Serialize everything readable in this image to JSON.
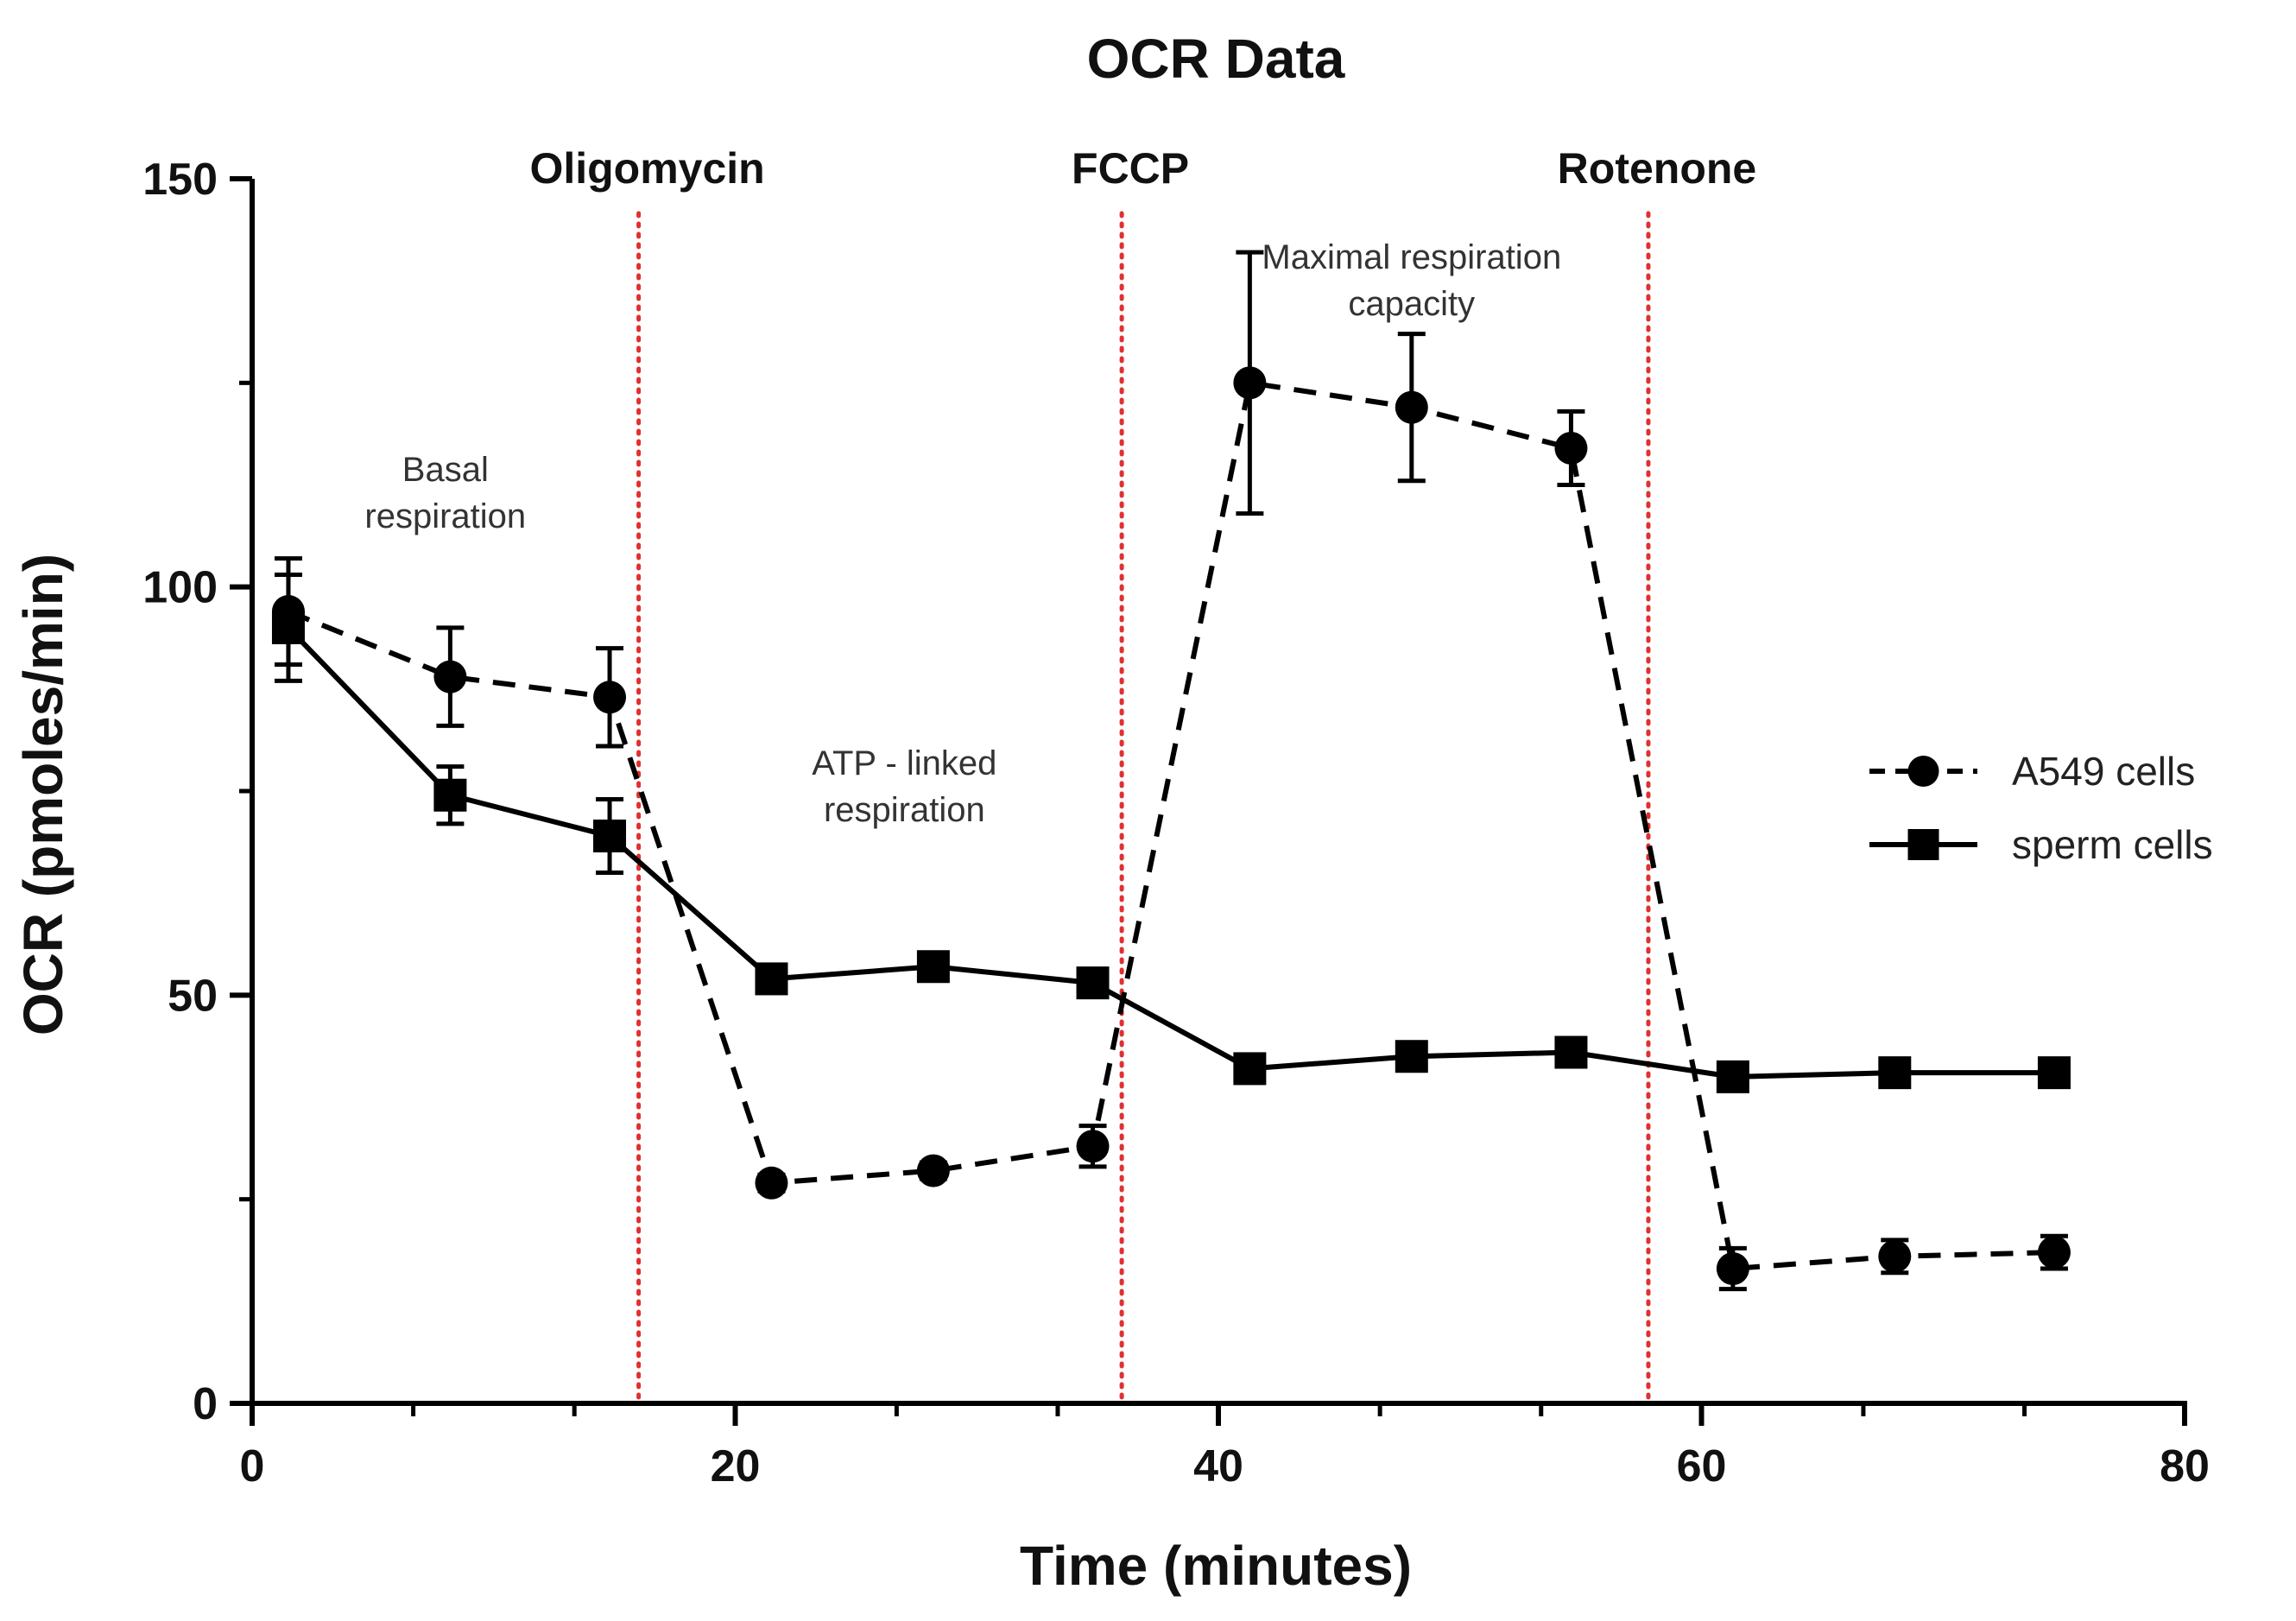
{
  "chart_data": {
    "type": "line",
    "title": "OCR Data",
    "xlabel": "Time (minutes)",
    "ylabel": "OCR (pmoles/min)",
    "xlim": [
      0,
      80
    ],
    "ylim": [
      0,
      150
    ],
    "xticks": [
      0,
      20,
      40,
      60,
      80
    ],
    "yticks": [
      0,
      50,
      100,
      150
    ],
    "x_minor_step": 6.67,
    "grid": false,
    "legend_position": "right",
    "colors": {
      "line": "#000000",
      "event_line": "#e03030"
    },
    "events": [
      {
        "x": 16,
        "label": "Oligomycin"
      },
      {
        "x": 36,
        "label": "FCCP"
      },
      {
        "x": 57.8,
        "label": "Rotenone"
      }
    ],
    "annotations": [
      {
        "x": 8,
        "y": 113,
        "lines": [
          "Basal",
          "respiration"
        ]
      },
      {
        "x": 27,
        "y": 77,
        "lines": [
          "ATP - linked",
          "respiration"
        ]
      },
      {
        "x": 48,
        "y": 139,
        "lines": [
          "Maximal respiration",
          "capacity"
        ]
      }
    ],
    "series": [
      {
        "name": "A549 cells",
        "style": "dashed",
        "marker": "circle",
        "points": [
          {
            "x": 1.5,
            "y": 97,
            "err": 6.5
          },
          {
            "x": 8.2,
            "y": 89,
            "err": 6
          },
          {
            "x": 14.8,
            "y": 86.5,
            "err": 6
          },
          {
            "x": 21.5,
            "y": 27,
            "err": 1
          },
          {
            "x": 28.2,
            "y": 28.5,
            "err": 1
          },
          {
            "x": 34.8,
            "y": 31.5,
            "err": 2.5
          },
          {
            "x": 41.3,
            "y": 125,
            "err": 16
          },
          {
            "x": 48,
            "y": 122,
            "err": 9
          },
          {
            "x": 54.6,
            "y": 117,
            "err": 4.5
          },
          {
            "x": 61.3,
            "y": 16.5,
            "err": 2.5
          },
          {
            "x": 68,
            "y": 18,
            "err": 2
          },
          {
            "x": 74.6,
            "y": 18.5,
            "err": 2
          }
        ]
      },
      {
        "name": "sperm cells",
        "style": "solid",
        "marker": "square",
        "points": [
          {
            "x": 1.5,
            "y": 95,
            "err": 6.5
          },
          {
            "x": 8.2,
            "y": 74.5,
            "err": 3.5
          },
          {
            "x": 14.8,
            "y": 69.5,
            "err": 4.5
          },
          {
            "x": 21.5,
            "y": 52,
            "err": 1
          },
          {
            "x": 28.2,
            "y": 53.5,
            "err": 1
          },
          {
            "x": 34.8,
            "y": 51.5,
            "err": 1
          },
          {
            "x": 41.3,
            "y": 41,
            "err": 1
          },
          {
            "x": 48,
            "y": 42.5,
            "err": 1
          },
          {
            "x": 54.6,
            "y": 43,
            "err": 1
          },
          {
            "x": 61.3,
            "y": 40,
            "err": 1
          },
          {
            "x": 68,
            "y": 40.5,
            "err": 1
          },
          {
            "x": 74.6,
            "y": 40.5,
            "err": 1
          }
        ]
      }
    ]
  }
}
